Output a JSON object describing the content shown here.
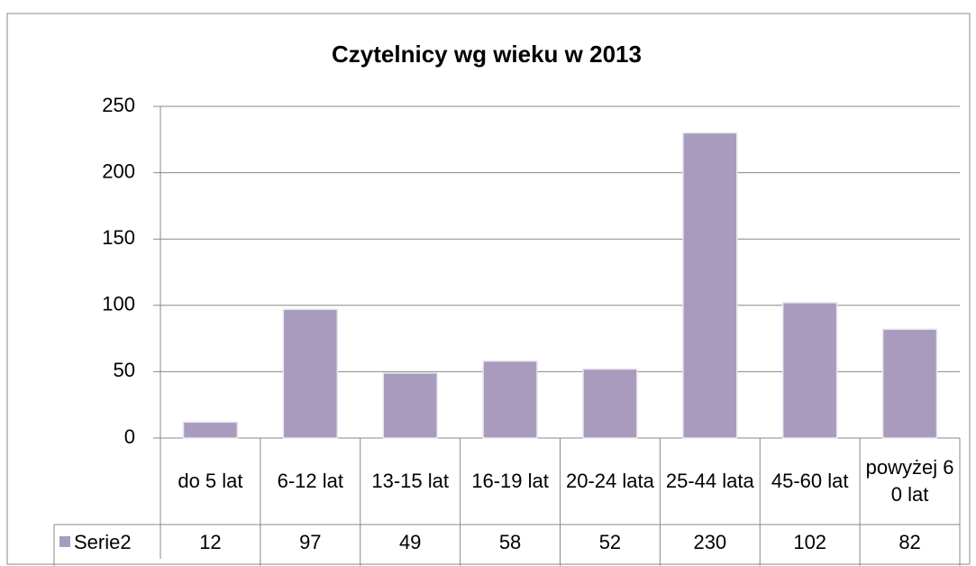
{
  "chart_data": {
    "type": "bar",
    "title": "Czytelnicy wg wieku w 2013",
    "categories": [
      "do 5 lat",
      "6-12 lat",
      "13-15 lat",
      "16-19 lat",
      "20-24 lata",
      "25-44 lata",
      "45-60 lat",
      "powyżej 60 lat"
    ],
    "series": [
      {
        "name": "Serie2",
        "color": "#a99bbd",
        "values": [
          12,
          97,
          49,
          58,
          52,
          230,
          102,
          82
        ]
      }
    ],
    "ylim": [
      0,
      250
    ],
    "yticks": [
      0,
      50,
      100,
      150,
      200,
      250
    ],
    "grid": true,
    "data_table": true
  }
}
